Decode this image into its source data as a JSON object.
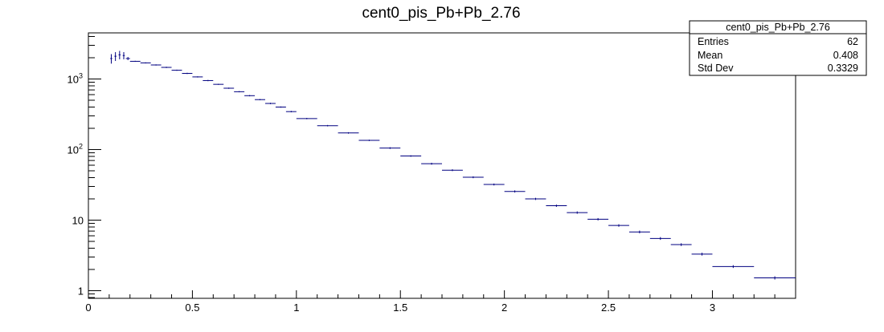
{
  "chart_data": {
    "type": "scatter",
    "title": "cent0_pis_Pb+Pb_2.76",
    "xlabel": "",
    "ylabel": "",
    "xlim": [
      0,
      3.4
    ],
    "ylim": [
      0.78,
      4500
    ],
    "y_scale": "log",
    "line_color": "#000080",
    "x_ticks": [
      "0",
      "0.5",
      "1",
      "1.5",
      "2",
      "2.5",
      "3"
    ],
    "y_ticks": [
      {
        "mantissa": "1",
        "exp": ""
      },
      {
        "mantissa": "10",
        "exp": ""
      },
      {
        "mantissa": "10",
        "exp": "2"
      },
      {
        "mantissa": "10",
        "exp": "3"
      }
    ],
    "stats": {
      "name": "cent0_pis_Pb+Pb_2.76",
      "rows": [
        {
          "label": "Entries",
          "value": "62"
        },
        {
          "label": "Mean",
          "value": "0.408"
        },
        {
          "label": "Std Dev",
          "value": "0.3329"
        }
      ]
    },
    "series": [
      {
        "points": [
          {
            "x": 0.11,
            "y": 1950,
            "xerr": 0.005,
            "yerr": 300
          },
          {
            "x": 0.13,
            "y": 2100,
            "xerr": 0.005,
            "yerr": 300
          },
          {
            "x": 0.15,
            "y": 2200,
            "xerr": 0.005,
            "yerr": 300
          },
          {
            "x": 0.17,
            "y": 2150,
            "xerr": 0.005,
            "yerr": 250
          },
          {
            "x": 0.19,
            "y": 1950,
            "xerr": 0.01,
            "yerr": 100
          },
          {
            "x": 0.225,
            "y": 1780,
            "xerr": 0.025,
            "yerr": 30
          },
          {
            "x": 0.275,
            "y": 1690,
            "xerr": 0.025,
            "yerr": 30
          },
          {
            "x": 0.325,
            "y": 1580,
            "xerr": 0.025,
            "yerr": 30
          },
          {
            "x": 0.375,
            "y": 1460,
            "xerr": 0.025,
            "yerr": 30
          },
          {
            "x": 0.425,
            "y": 1330,
            "xerr": 0.025,
            "yerr": 25
          },
          {
            "x": 0.475,
            "y": 1200,
            "xerr": 0.025,
            "yerr": 25
          },
          {
            "x": 0.525,
            "y": 1070,
            "xerr": 0.025,
            "yerr": 20
          },
          {
            "x": 0.575,
            "y": 950,
            "xerr": 0.025,
            "yerr": 20
          },
          {
            "x": 0.625,
            "y": 840,
            "xerr": 0.025,
            "yerr": 15
          },
          {
            "x": 0.675,
            "y": 740,
            "xerr": 0.025,
            "yerr": 15
          },
          {
            "x": 0.725,
            "y": 660,
            "xerr": 0.025,
            "yerr": 12
          },
          {
            "x": 0.775,
            "y": 580,
            "xerr": 0.025,
            "yerr": 12
          },
          {
            "x": 0.825,
            "y": 510,
            "xerr": 0.025,
            "yerr": 10
          },
          {
            "x": 0.875,
            "y": 450,
            "xerr": 0.025,
            "yerr": 10
          },
          {
            "x": 0.925,
            "y": 400,
            "xerr": 0.025,
            "yerr": 8
          },
          {
            "x": 0.975,
            "y": 345,
            "xerr": 0.025,
            "yerr": 8
          },
          {
            "x": 1.05,
            "y": 275,
            "xerr": 0.05,
            "yerr": 6
          },
          {
            "x": 1.15,
            "y": 218,
            "xerr": 0.05,
            "yerr": 5
          },
          {
            "x": 1.25,
            "y": 172,
            "xerr": 0.05,
            "yerr": 4
          },
          {
            "x": 1.35,
            "y": 135,
            "xerr": 0.05,
            "yerr": 3
          },
          {
            "x": 1.45,
            "y": 105,
            "xerr": 0.05,
            "yerr": 3
          },
          {
            "x": 1.55,
            "y": 81,
            "xerr": 0.05,
            "yerr": 2
          },
          {
            "x": 1.65,
            "y": 63,
            "xerr": 0.05,
            "yerr": 2
          },
          {
            "x": 1.75,
            "y": 51,
            "xerr": 0.05,
            "yerr": 1.5
          },
          {
            "x": 1.85,
            "y": 40.5,
            "xerr": 0.05,
            "yerr": 1.2
          },
          {
            "x": 1.95,
            "y": 32,
            "xerr": 0.05,
            "yerr": 1
          },
          {
            "x": 2.05,
            "y": 25.5,
            "xerr": 0.05,
            "yerr": 0.9
          },
          {
            "x": 2.15,
            "y": 20,
            "xerr": 0.05,
            "yerr": 0.7
          },
          {
            "x": 2.25,
            "y": 16,
            "xerr": 0.05,
            "yerr": 0.6
          },
          {
            "x": 2.35,
            "y": 12.8,
            "xerr": 0.05,
            "yerr": 0.5
          },
          {
            "x": 2.45,
            "y": 10.3,
            "xerr": 0.05,
            "yerr": 0.4
          },
          {
            "x": 2.55,
            "y": 8.4,
            "xerr": 0.05,
            "yerr": 0.35
          },
          {
            "x": 2.65,
            "y": 6.8,
            "xerr": 0.05,
            "yerr": 0.3
          },
          {
            "x": 2.75,
            "y": 5.5,
            "xerr": 0.05,
            "yerr": 0.25
          },
          {
            "x": 2.85,
            "y": 4.5,
            "xerr": 0.05,
            "yerr": 0.2
          },
          {
            "x": 2.95,
            "y": 3.3,
            "xerr": 0.05,
            "yerr": 0.15
          },
          {
            "x": 3.1,
            "y": 2.2,
            "xerr": 0.1,
            "yerr": 0.1
          },
          {
            "x": 3.3,
            "y": 1.52,
            "xerr": 0.1,
            "yerr": 0.08
          }
        ]
      }
    ]
  }
}
